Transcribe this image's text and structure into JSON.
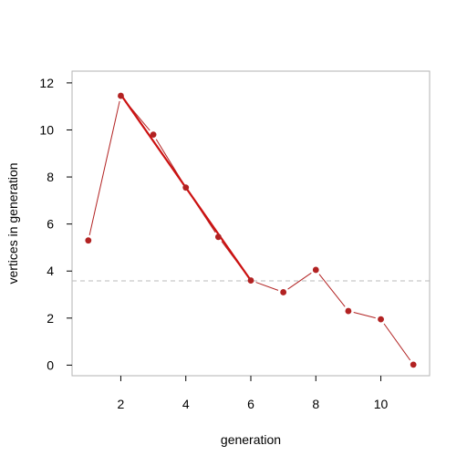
{
  "chart_data": {
    "type": "line",
    "title": "",
    "xlabel": "generation",
    "ylabel": "vertices in generation",
    "xlim": [
      0.5,
      11.5
    ],
    "ylim": [
      -0.45,
      12.5
    ],
    "x_ticks": [
      2,
      4,
      6,
      8,
      10
    ],
    "y_ticks": [
      0,
      2,
      4,
      6,
      8,
      10,
      12
    ],
    "grid": false,
    "series": [
      {
        "color": "#b22222",
        "x": [
          1,
          2,
          3,
          4,
          5,
          6,
          7,
          8,
          9,
          10,
          11
        ],
        "y": [
          5.3,
          11.45,
          9.8,
          7.55,
          5.45,
          3.6,
          3.1,
          4.05,
          2.3,
          1.95,
          0.02
        ]
      }
    ],
    "fit_line": {
      "color": "#cc1111",
      "x": [
        2,
        6
      ],
      "y": [
        11.5,
        3.6
      ]
    },
    "reference_line": {
      "y": 3.58,
      "style": "dashed",
      "color": "#bbbbbb"
    }
  }
}
